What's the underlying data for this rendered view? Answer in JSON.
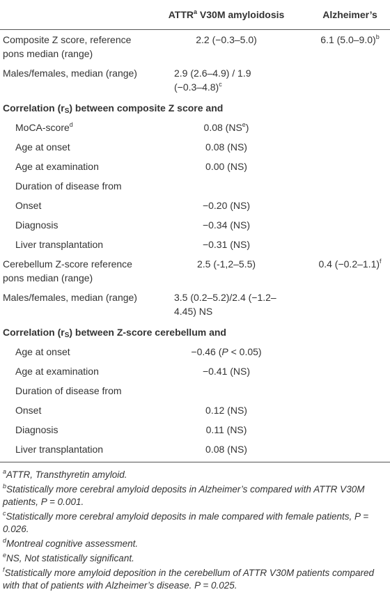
{
  "table": {
    "header": [
      [
        ""
      ],
      [
        "ATTR",
        {
          "sup": "a"
        },
        " V30M amyloidosis"
      ],
      [
        "Alzheimer’s"
      ]
    ],
    "rows": [
      {
        "cells": [
          [
            "Composite Z score, reference pons median (range)"
          ],
          [
            "2.2 (−0.3–5.0)"
          ],
          [
            "6.1 (5.0–9.0)",
            {
              "sup": "b"
            }
          ]
        ]
      },
      {
        "cells": [
          [
            "Males/females, median (range)"
          ],
          [
            "2.9 (2.6–4.9) / 1.9 (−0.3–4.8)",
            {
              "sup": "c"
            }
          ],
          []
        ]
      },
      {
        "section": [
          "Correlation (r",
          {
            "sub": "S"
          },
          ") between composite Z score and"
        ]
      },
      {
        "indent": true,
        "cells": [
          [
            "MoCA-score",
            {
              "sup": "d"
            }
          ],
          [
            "0.08 (NS",
            {
              "sup": "e"
            },
            ")"
          ],
          []
        ]
      },
      {
        "indent": true,
        "cells": [
          [
            "Age at onset"
          ],
          [
            "0.08 (NS)"
          ],
          []
        ]
      },
      {
        "indent": true,
        "cells": [
          [
            "Age at examination"
          ],
          [
            "0.00 (NS)"
          ],
          []
        ]
      },
      {
        "indent": true,
        "cells": [
          [
            "Duration of disease from"
          ],
          [],
          []
        ]
      },
      {
        "indent": true,
        "cells": [
          [
            "Onset"
          ],
          [
            "−0.20 (NS)"
          ],
          []
        ]
      },
      {
        "indent": true,
        "cells": [
          [
            "Diagnosis"
          ],
          [
            "−0.34 (NS)"
          ],
          []
        ]
      },
      {
        "indent": true,
        "cells": [
          [
            "Liver transplantation"
          ],
          [
            "−0.31 (NS)"
          ],
          []
        ]
      },
      {
        "cells": [
          [
            "Cerebellum Z-score reference pons median (range)"
          ],
          [
            "2.5 (-1,2–5.5)"
          ],
          [
            "0.4 (−0.2–1.1)",
            {
              "sup": "f"
            }
          ]
        ]
      },
      {
        "cells": [
          [
            "Males/females, median (range)"
          ],
          [
            "3.5 (0.2–5.2)/2.4 (−1.2–4.45) NS"
          ],
          []
        ]
      },
      {
        "section": [
          "Correlation (r",
          {
            "sub": "S"
          },
          ") between Z-score cerebellum and"
        ]
      },
      {
        "indent": true,
        "cells": [
          [
            "Age at onset"
          ],
          [
            "−0.46 (",
            {
              "i": "P"
            },
            " < 0.05)"
          ],
          []
        ]
      },
      {
        "indent": true,
        "cells": [
          [
            "Age at examination"
          ],
          [
            "−0.41 (NS)"
          ],
          []
        ]
      },
      {
        "indent": true,
        "cells": [
          [
            "Duration of disease from"
          ],
          [],
          []
        ]
      },
      {
        "indent": true,
        "cells": [
          [
            "Onset"
          ],
          [
            "0.12 (NS)"
          ],
          []
        ]
      },
      {
        "indent": true,
        "cells": [
          [
            "Diagnosis"
          ],
          [
            "0.11 (NS)"
          ],
          []
        ]
      },
      {
        "indent": true,
        "cells": [
          [
            "Liver transplantation"
          ],
          [
            "0.08 (NS)"
          ],
          []
        ]
      }
    ],
    "footnotes": [
      [
        {
          "sup": "a"
        },
        "ATTR, Transthyretin amyloid."
      ],
      [
        {
          "sup": "b"
        },
        "Statistically more cerebral amyloid deposits in Alzheimer’s compared with ATTR V30M patients, P = 0.001."
      ],
      [
        {
          "sup": "c"
        },
        "Statistically more cerebral amyloid deposits in male compared with female patients, P = 0.026."
      ],
      [
        {
          "sup": "d"
        },
        "Montreal cognitive assessment."
      ],
      [
        {
          "sup": "e"
        },
        "NS, Not statistically significant."
      ],
      [
        {
          "sup": "f"
        },
        "Statistically more amyloid deposition in the cerebellum of ATTR V30M patients compared with that of patients with Alzheimer’s disease. P = 0.025."
      ]
    ]
  }
}
